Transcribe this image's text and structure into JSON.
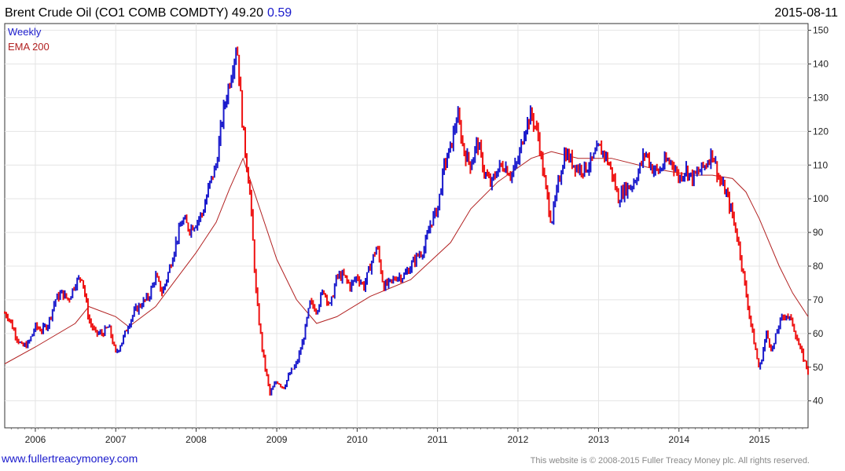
{
  "header": {
    "title": "Brent Crude Oil  (CO1 COMB COMDTY) 49.20",
    "change": "0.59",
    "date": "2015-08-11"
  },
  "legend": {
    "weekly_label": "Weekly",
    "ema_label": "EMA 200"
  },
  "footer": {
    "website": "www.fullertreacymoney.com",
    "copyright": "This website is © 2008-2015 Fuller Treacy Money plc. All rights reserved."
  },
  "colors": {
    "up": "#1a1acc",
    "down": "#ee1111",
    "ema": "#b22222",
    "grid": "#e4e4e4",
    "axis": "#333333",
    "title_change": "#1a1acc"
  },
  "chart_data": {
    "type": "line",
    "x_axis": {
      "type": "date",
      "range": [
        "2005-08-15",
        "2015-08-10"
      ],
      "tick_labels": [
        "2006",
        "2007",
        "2008",
        "2009",
        "2010",
        "2011",
        "2012",
        "2013",
        "2014",
        "2015"
      ]
    },
    "y_axis": {
      "range": [
        32,
        152
      ],
      "tick_values": [
        40,
        50,
        60,
        70,
        80,
        90,
        100,
        110,
        120,
        130,
        140,
        150
      ],
      "side": "right"
    },
    "grid": true,
    "series": [
      {
        "name": "Weekly",
        "style": "high-low bars colored up/down",
        "points": [
          [
            "2005-08-15",
            66
          ],
          [
            "2005-09-01",
            65
          ],
          [
            "2005-10-01",
            60
          ],
          [
            "2005-11-01",
            56
          ],
          [
            "2005-12-01",
            57
          ],
          [
            "2006-01-01",
            62
          ],
          [
            "2006-02-01",
            61
          ],
          [
            "2006-03-01",
            63
          ],
          [
            "2006-04-01",
            70
          ],
          [
            "2006-05-01",
            72
          ],
          [
            "2006-06-01",
            70
          ],
          [
            "2006-07-01",
            75
          ],
          [
            "2006-08-01",
            77
          ],
          [
            "2006-09-01",
            64
          ],
          [
            "2006-10-01",
            60
          ],
          [
            "2006-11-01",
            60
          ],
          [
            "2006-12-01",
            62
          ],
          [
            "2007-01-01",
            54
          ],
          [
            "2007-02-01",
            58
          ],
          [
            "2007-03-01",
            63
          ],
          [
            "2007-04-01",
            67
          ],
          [
            "2007-05-01",
            69
          ],
          [
            "2007-06-01",
            71
          ],
          [
            "2007-07-01",
            77
          ],
          [
            "2007-08-01",
            72
          ],
          [
            "2007-09-01",
            79
          ],
          [
            "2007-10-01",
            87
          ],
          [
            "2007-11-01",
            94
          ],
          [
            "2007-12-01",
            91
          ],
          [
            "2008-01-01",
            93
          ],
          [
            "2008-02-01",
            96
          ],
          [
            "2008-03-01",
            104
          ],
          [
            "2008-04-01",
            110
          ],
          [
            "2008-05-01",
            125
          ],
          [
            "2008-06-01",
            135
          ],
          [
            "2008-07-04",
            146
          ],
          [
            "2008-08-01",
            120
          ],
          [
            "2008-09-01",
            102
          ],
          [
            "2008-10-01",
            70
          ],
          [
            "2008-11-01",
            53
          ],
          [
            "2008-12-01",
            42
          ],
          [
            "2009-01-01",
            46
          ],
          [
            "2009-02-01",
            44
          ],
          [
            "2009-03-01",
            48
          ],
          [
            "2009-04-01",
            51
          ],
          [
            "2009-05-01",
            58
          ],
          [
            "2009-06-01",
            69
          ],
          [
            "2009-07-01",
            67
          ],
          [
            "2009-08-01",
            73
          ],
          [
            "2009-09-01",
            68
          ],
          [
            "2009-10-01",
            77
          ],
          [
            "2009-11-01",
            77
          ],
          [
            "2009-12-01",
            74
          ],
          [
            "2010-01-01",
            77
          ],
          [
            "2010-02-01",
            74
          ],
          [
            "2010-03-01",
            80
          ],
          [
            "2010-04-01",
            86
          ],
          [
            "2010-05-01",
            74
          ],
          [
            "2010-06-01",
            75
          ],
          [
            "2010-07-01",
            77
          ],
          [
            "2010-08-01",
            77
          ],
          [
            "2010-09-01",
            80
          ],
          [
            "2010-10-01",
            83
          ],
          [
            "2010-11-01",
            85
          ],
          [
            "2010-12-01",
            93
          ],
          [
            "2011-01-01",
            97
          ],
          [
            "2011-02-01",
            110
          ],
          [
            "2011-03-01",
            115
          ],
          [
            "2011-04-01",
            125
          ],
          [
            "2011-05-01",
            114
          ],
          [
            "2011-06-01",
            110
          ],
          [
            "2011-07-01",
            117
          ],
          [
            "2011-08-01",
            108
          ],
          [
            "2011-09-01",
            104
          ],
          [
            "2011-10-01",
            109
          ],
          [
            "2011-11-01",
            110
          ],
          [
            "2011-12-01",
            107
          ],
          [
            "2012-01-01",
            111
          ],
          [
            "2012-02-01",
            121
          ],
          [
            "2012-03-01",
            125
          ],
          [
            "2012-04-01",
            119
          ],
          [
            "2012-05-01",
            105
          ],
          [
            "2012-06-01",
            93
          ],
          [
            "2012-07-01",
            104
          ],
          [
            "2012-08-01",
            114
          ],
          [
            "2012-09-01",
            111
          ],
          [
            "2012-10-01",
            109
          ],
          [
            "2012-11-01",
            109
          ],
          [
            "2012-12-01",
            111
          ],
          [
            "2013-01-01",
            115
          ],
          [
            "2013-02-01",
            113
          ],
          [
            "2013-03-01",
            108
          ],
          [
            "2013-04-01",
            100
          ],
          [
            "2013-05-01",
            103
          ],
          [
            "2013-06-01",
            104
          ],
          [
            "2013-07-01",
            108
          ],
          [
            "2013-08-01",
            114
          ],
          [
            "2013-09-01",
            109
          ],
          [
            "2013-10-01",
            108
          ],
          [
            "2013-11-01",
            111
          ],
          [
            "2013-12-01",
            111
          ],
          [
            "2014-01-01",
            106
          ],
          [
            "2014-02-01",
            109
          ],
          [
            "2014-03-01",
            106
          ],
          [
            "2014-04-01",
            108
          ],
          [
            "2014-05-01",
            110
          ],
          [
            "2014-06-01",
            114
          ],
          [
            "2014-07-01",
            106
          ],
          [
            "2014-08-01",
            102
          ],
          [
            "2014-09-01",
            95
          ],
          [
            "2014-10-01",
            86
          ],
          [
            "2014-11-01",
            72
          ],
          [
            "2014-12-01",
            60
          ],
          [
            "2015-01-01",
            49
          ],
          [
            "2015-02-01",
            60
          ],
          [
            "2015-03-01",
            55
          ],
          [
            "2015-04-01",
            63
          ],
          [
            "2015-05-01",
            66
          ],
          [
            "2015-06-01",
            63
          ],
          [
            "2015-07-01",
            56
          ],
          [
            "2015-08-10",
            49
          ]
        ]
      },
      {
        "name": "EMA 200",
        "style": "line",
        "points": [
          [
            "2005-08-15",
            51
          ],
          [
            "2006-01-01",
            56
          ],
          [
            "2006-07-01",
            63
          ],
          [
            "2006-09-01",
            68
          ],
          [
            "2007-01-01",
            65
          ],
          [
            "2007-03-01",
            62
          ],
          [
            "2007-07-01",
            68
          ],
          [
            "2007-10-01",
            76
          ],
          [
            "2008-01-01",
            84
          ],
          [
            "2008-04-01",
            93
          ],
          [
            "2008-06-01",
            103
          ],
          [
            "2008-08-01",
            112
          ],
          [
            "2008-10-01",
            100
          ],
          [
            "2009-01-01",
            82
          ],
          [
            "2009-04-01",
            70
          ],
          [
            "2009-07-01",
            63
          ],
          [
            "2009-10-01",
            65
          ],
          [
            "2010-03-01",
            71
          ],
          [
            "2010-09-01",
            76
          ],
          [
            "2011-03-01",
            87
          ],
          [
            "2011-06-01",
            97
          ],
          [
            "2011-10-01",
            105
          ],
          [
            "2012-03-01",
            112
          ],
          [
            "2012-06-01",
            114
          ],
          [
            "2012-10-01",
            112
          ],
          [
            "2013-03-01",
            112
          ],
          [
            "2013-09-01",
            109
          ],
          [
            "2014-03-01",
            107
          ],
          [
            "2014-06-01",
            107
          ],
          [
            "2014-09-01",
            106
          ],
          [
            "2014-11-01",
            102
          ],
          [
            "2015-01-01",
            94
          ],
          [
            "2015-04-01",
            80
          ],
          [
            "2015-06-01",
            72
          ],
          [
            "2015-08-10",
            65
          ]
        ]
      }
    ]
  }
}
